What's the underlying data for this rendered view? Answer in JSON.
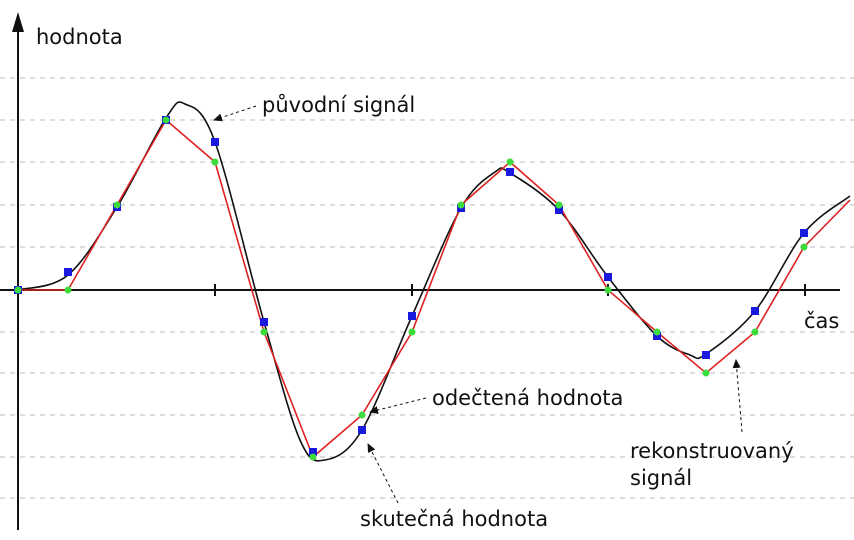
{
  "axes": {
    "y_label": "hodnota",
    "x_label": "čas"
  },
  "annotations": {
    "original": "původní signál",
    "sampled": "odečtená hodnota",
    "actual": "skutečná hodnota",
    "reconstructed_1": "rekonstruovaný",
    "reconstructed_2": "signál"
  }
}
